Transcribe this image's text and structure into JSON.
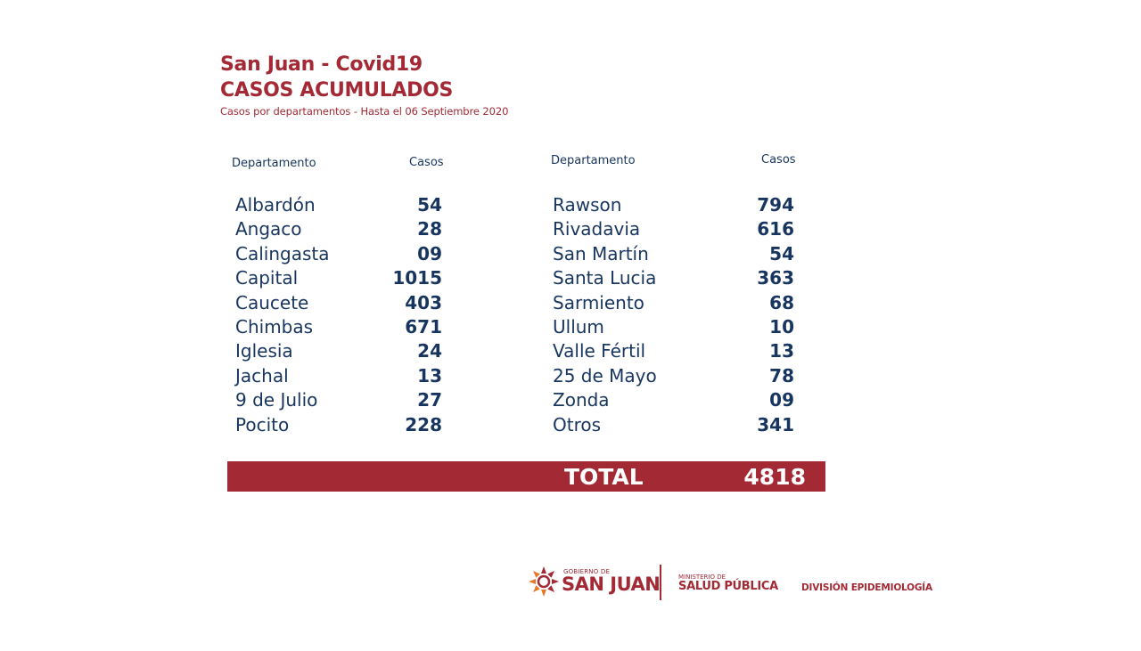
{
  "header": {
    "title_line1": "San Juan - Covid19",
    "title_line2": "CASOS ACUMULADOS",
    "subtitle": "Casos por departamentos - Hasta el 06 Septiembre 2020"
  },
  "columns": {
    "left": {
      "dept_header": "Departamento",
      "cases_header": "Casos"
    },
    "right": {
      "dept_header": "Departamento",
      "cases_header": "Casos"
    }
  },
  "rows_left": [
    {
      "name": "Albardón",
      "cases": "54"
    },
    {
      "name": "Angaco",
      "cases": "28"
    },
    {
      "name": "Calingasta",
      "cases": "09"
    },
    {
      "name": "Capital",
      "cases": "1015"
    },
    {
      "name": "Caucete",
      "cases": "403"
    },
    {
      "name": "Chimbas",
      "cases": "671"
    },
    {
      "name": "Iglesia",
      "cases": "24"
    },
    {
      "name": "Jachal",
      "cases": "13"
    },
    {
      "name": "9 de Julio",
      "cases": "27"
    },
    {
      "name": "Pocito",
      "cases": "228"
    }
  ],
  "rows_right": [
    {
      "name": "Rawson",
      "cases": "794"
    },
    {
      "name": "Rivadavia",
      "cases": "616"
    },
    {
      "name": "San Martín",
      "cases": "54"
    },
    {
      "name": "Santa Lucia",
      "cases": "363"
    },
    {
      "name": "Sarmiento",
      "cases": "68"
    },
    {
      "name": "Ullum",
      "cases": "10"
    },
    {
      "name": "Valle Fértil",
      "cases": "13"
    },
    {
      "name": "25 de Mayo",
      "cases": "78"
    },
    {
      "name": "Zonda",
      "cases": "09"
    },
    {
      "name": "Otros",
      "cases": "341"
    }
  ],
  "total": {
    "label": "TOTAL",
    "value": "4818"
  },
  "footer": {
    "gobierno_small": "GOBIERNO DE",
    "gobierno_big": "SAN JUAN",
    "ministerio_small": "MINISTERIO DE",
    "ministerio_big": "SALUD PÚBLICA",
    "division": "DIVISIÓN EPIDEMIOLOGÍA"
  },
  "colors": {
    "accent": "#a32a35",
    "text": "#17355f",
    "sun_orange": "#e8792b"
  }
}
